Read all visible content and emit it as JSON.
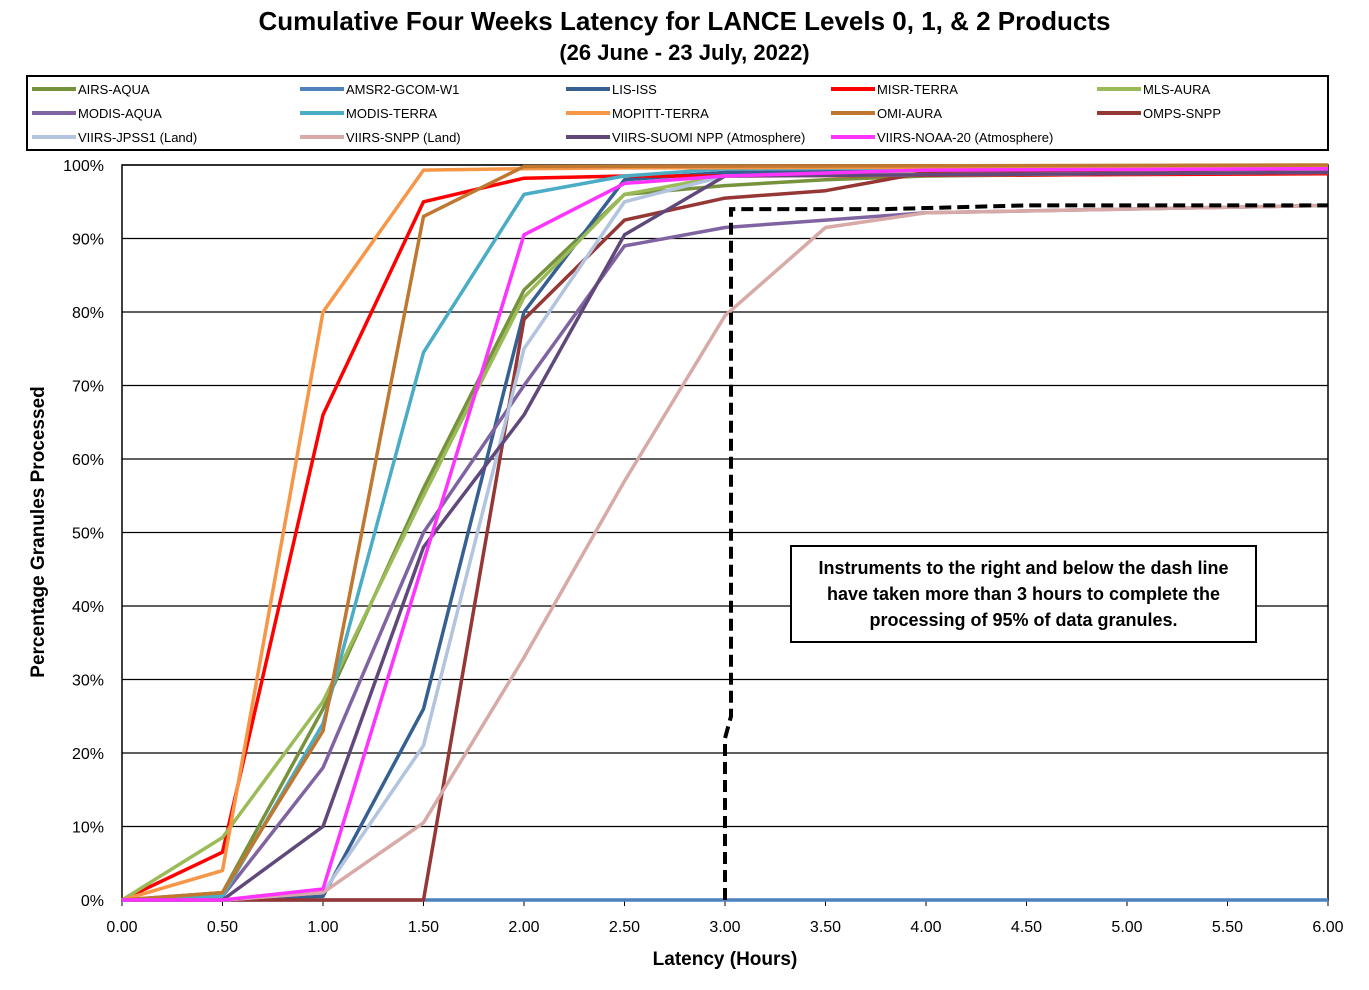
{
  "chart_data": {
    "type": "line",
    "title": "Cumulative Four Weeks Latency  for LANCE Levels 0, 1, & 2 Products",
    "subtitle": "(26  June   -  23  July,  2022)",
    "xlabel": "Latency (Hours)",
    "ylabel": "Percentage Granules Processed",
    "xlim": [
      0,
      6
    ],
    "ylim": [
      0,
      100
    ],
    "x_ticks": [
      "0.00",
      "0.50",
      "1.00",
      "1.50",
      "2.00",
      "2.50",
      "3.00",
      "3.50",
      "4.00",
      "4.50",
      "5.00",
      "5.50",
      "6.00"
    ],
    "y_ticks": [
      "0%",
      "10%",
      "20%",
      "30%",
      "40%",
      "50%",
      "60%",
      "70%",
      "80%",
      "90%",
      "100%"
    ],
    "grid": "horizontal",
    "legend_position": "top",
    "annotation": "Instruments to the right and below the dash line have taken more than 3 hours to complete the processing of 95% of data granules.",
    "threshold_line": {
      "style": "dashed",
      "color": "#000000",
      "points": [
        [
          3.0,
          0
        ],
        [
          3.0,
          22
        ],
        [
          3.03,
          25
        ],
        [
          3.03,
          94
        ],
        [
          3.8,
          94
        ],
        [
          4.5,
          94.5
        ],
        [
          6.0,
          94.5
        ]
      ]
    },
    "series": [
      {
        "name": "AIRS-AQUA",
        "color": "#76923c",
        "points": [
          [
            0,
            0
          ],
          [
            0.5,
            1
          ],
          [
            1,
            26
          ],
          [
            1.5,
            56
          ],
          [
            2,
            83
          ],
          [
            2.5,
            96
          ],
          [
            3,
            97.2
          ],
          [
            3.5,
            98
          ],
          [
            4,
            98.5
          ],
          [
            6,
            99
          ]
        ]
      },
      {
        "name": "AMSR2-GCOM-W1",
        "color": "#4f81bd",
        "points": [
          [
            0,
            0
          ],
          [
            6,
            0
          ]
        ]
      },
      {
        "name": "LIS-ISS",
        "color": "#366092",
        "points": [
          [
            0,
            0
          ],
          [
            0.5,
            0
          ],
          [
            1,
            0.5
          ],
          [
            1.5,
            26
          ],
          [
            2,
            80
          ],
          [
            2.5,
            98
          ],
          [
            3,
            99
          ],
          [
            6,
            99.5
          ]
        ]
      },
      {
        "name": "MISR-TERRA",
        "color": "#ff0000",
        "points": [
          [
            0,
            0
          ],
          [
            0.5,
            6.5
          ],
          [
            1,
            66
          ],
          [
            1.5,
            95
          ],
          [
            2,
            98.2
          ],
          [
            2.5,
            98.5
          ],
          [
            3,
            98.5
          ],
          [
            6,
            98.8
          ]
        ]
      },
      {
        "name": "MLS-AURA",
        "color": "#9bbb59",
        "points": [
          [
            0,
            0
          ],
          [
            0.5,
            8.5
          ],
          [
            1,
            27
          ],
          [
            1.5,
            55
          ],
          [
            2,
            82
          ],
          [
            2.5,
            96
          ],
          [
            3,
            98.5
          ],
          [
            6,
            99.5
          ]
        ]
      },
      {
        "name": "MODIS-AQUA",
        "color": "#8064a2",
        "points": [
          [
            0,
            0
          ],
          [
            0.5,
            0.5
          ],
          [
            1,
            18
          ],
          [
            1.5,
            50
          ],
          [
            2,
            70
          ],
          [
            2.5,
            89
          ],
          [
            3,
            91.5
          ],
          [
            3.5,
            92.5
          ],
          [
            4,
            93.5
          ],
          [
            6,
            94.5
          ]
        ]
      },
      {
        "name": "MODIS-TERRA",
        "color": "#4bacc6",
        "points": [
          [
            0,
            0
          ],
          [
            0.5,
            0.5
          ],
          [
            1,
            24
          ],
          [
            1.5,
            74.5
          ],
          [
            2,
            96
          ],
          [
            2.5,
            98.5
          ],
          [
            3,
            99.5
          ],
          [
            6,
            99.8
          ]
        ]
      },
      {
        "name": "MOPITT-TERRA",
        "color": "#f79646",
        "points": [
          [
            0,
            0
          ],
          [
            0.5,
            4
          ],
          [
            1,
            80
          ],
          [
            1.5,
            99.3
          ],
          [
            2,
            99.5
          ],
          [
            2.5,
            99.6
          ],
          [
            6,
            99.8
          ]
        ]
      },
      {
        "name": "OMI-AURA",
        "color": "#c0772f",
        "points": [
          [
            0,
            0
          ],
          [
            0.5,
            1
          ],
          [
            1,
            23
          ],
          [
            1.5,
            93
          ],
          [
            2,
            99.8
          ],
          [
            6,
            100
          ]
        ]
      },
      {
        "name": "OMPS-SNPP",
        "color": "#953735",
        "points": [
          [
            0,
            0
          ],
          [
            1.5,
            0
          ],
          [
            2,
            79
          ],
          [
            2.5,
            92.5
          ],
          [
            3,
            95.5
          ],
          [
            3.5,
            96.5
          ],
          [
            4,
            99
          ],
          [
            6,
            99.5
          ]
        ]
      },
      {
        "name": "VIIRS-JPSS1 (Land)",
        "color": "#b3c4de",
        "points": [
          [
            0,
            0
          ],
          [
            0.5,
            0
          ],
          [
            1,
            1
          ],
          [
            1.5,
            21
          ],
          [
            2,
            75
          ],
          [
            2.5,
            95
          ],
          [
            3,
            98.5
          ],
          [
            6,
            99
          ]
        ]
      },
      {
        "name": "VIIRS-SNPP (Land)",
        "color": "#d8aaa7",
        "points": [
          [
            0,
            0
          ],
          [
            0.5,
            0
          ],
          [
            1,
            1
          ],
          [
            1.5,
            10.5
          ],
          [
            2,
            33
          ],
          [
            2.5,
            57
          ],
          [
            3,
            79.5
          ],
          [
            3.5,
            91.5
          ],
          [
            4,
            93.5
          ],
          [
            6,
            94.5
          ]
        ]
      },
      {
        "name": "VIIRS-SUOMI NPP  (Atmosphere)",
        "color": "#60497a",
        "points": [
          [
            0,
            0
          ],
          [
            0.5,
            0
          ],
          [
            1,
            10
          ],
          [
            1.5,
            48
          ],
          [
            2,
            66
          ],
          [
            2.5,
            90.5
          ],
          [
            3,
            98.5
          ],
          [
            6,
            99
          ]
        ]
      },
      {
        "name": "VIIRS-NOAA-20 (Atmosphere)",
        "color": "#ff33ff",
        "points": [
          [
            0,
            0
          ],
          [
            0.5,
            0
          ],
          [
            1,
            1.5
          ],
          [
            1.5,
            46
          ],
          [
            2,
            90.5
          ],
          [
            2.5,
            97.5
          ],
          [
            3,
            98.5
          ],
          [
            4,
            99.3
          ],
          [
            6,
            99.5
          ]
        ]
      }
    ]
  }
}
